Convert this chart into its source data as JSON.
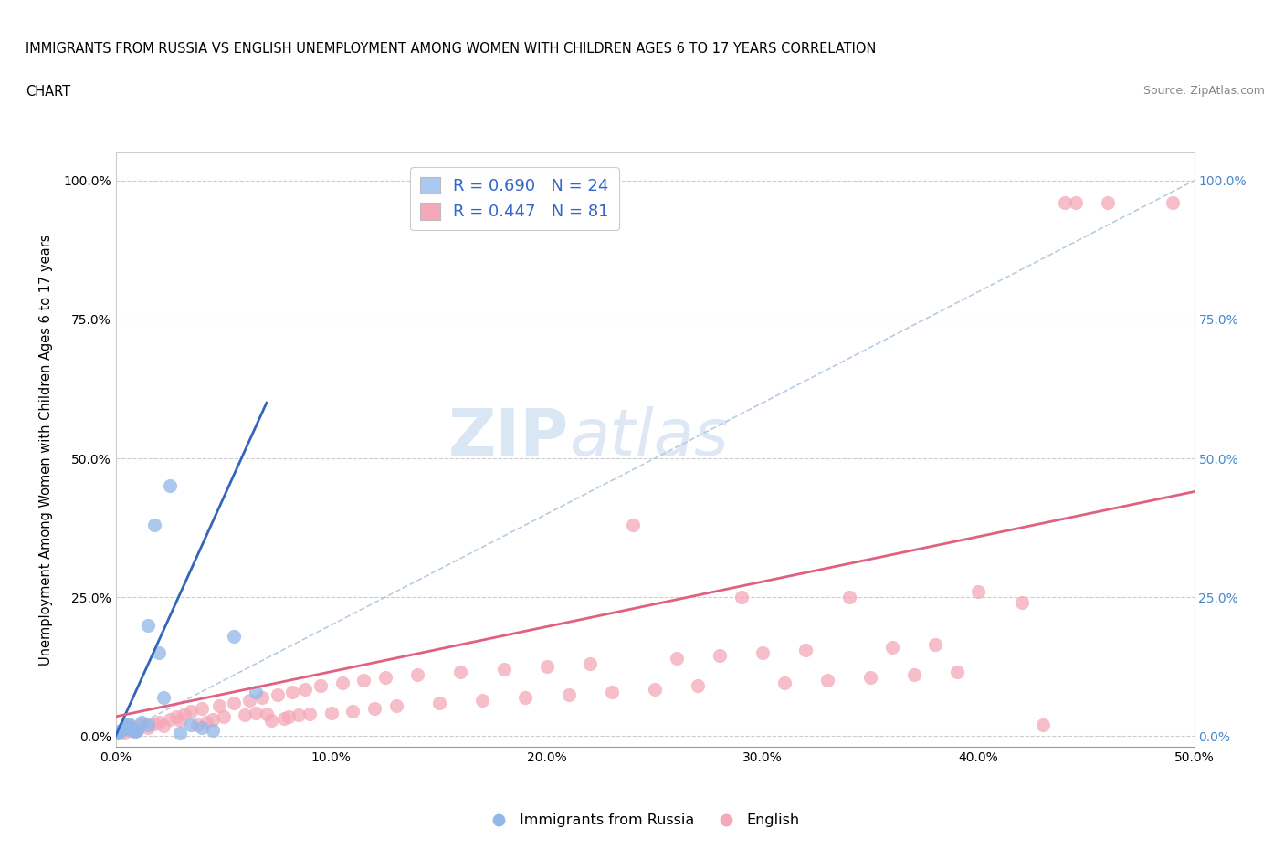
{
  "title_line1": "IMMIGRANTS FROM RUSSIA VS ENGLISH UNEMPLOYMENT AMONG WOMEN WITH CHILDREN AGES 6 TO 17 YEARS CORRELATION",
  "title_line2": "CHART",
  "source_text": "Source: ZipAtlas.com",
  "ylabel": "Unemployment Among Women with Children Ages 6 to 17 years",
  "xmin": 0.0,
  "xmax": 50.0,
  "ymin": -2.0,
  "ymax": 105.0,
  "xticks": [
    0.0,
    10.0,
    20.0,
    30.0,
    40.0,
    50.0
  ],
  "xtick_labels": [
    "0.0%",
    "10.0%",
    "20.0%",
    "30.0%",
    "40.0%",
    "50.0%"
  ],
  "yticks": [
    0.0,
    25.0,
    50.0,
    75.0,
    100.0
  ],
  "ytick_labels": [
    "0.0%",
    "25.0%",
    "50.0%",
    "75.0%",
    "100.0%"
  ],
  "legend_items": [
    {
      "label": "R = 0.690   N = 24",
      "color": "#aac8f0"
    },
    {
      "label": "R = 0.447   N = 81",
      "color": "#f4a8b8"
    }
  ],
  "legend_labels_bottom": [
    "Immigrants from Russia",
    "English"
  ],
  "russia_color": "#90b8e8",
  "english_color": "#f4a8b8",
  "russia_line_color": "#3366bb",
  "english_line_color": "#e06080",
  "dashed_line_color": "#b8cce0",
  "watermark_zip": "ZIP",
  "watermark_atlas": "atlas",
  "russia_scatter": [
    [
      0.1,
      0.5
    ],
    [
      0.2,
      0.8
    ],
    [
      0.3,
      1.2
    ],
    [
      0.4,
      1.5
    ],
    [
      0.5,
      2.0
    ],
    [
      0.5,
      1.8
    ],
    [
      0.6,
      2.2
    ],
    [
      0.7,
      1.5
    ],
    [
      0.8,
      1.0
    ],
    [
      0.9,
      0.8
    ],
    [
      1.0,
      1.0
    ],
    [
      1.2,
      2.5
    ],
    [
      1.5,
      2.0
    ],
    [
      1.5,
      20.0
    ],
    [
      1.8,
      38.0
    ],
    [
      2.0,
      15.0
    ],
    [
      2.2,
      7.0
    ],
    [
      2.5,
      45.0
    ],
    [
      3.0,
      0.5
    ],
    [
      3.5,
      2.0
    ],
    [
      4.0,
      1.5
    ],
    [
      4.5,
      1.0
    ],
    [
      5.5,
      18.0
    ],
    [
      6.5,
      8.0
    ]
  ],
  "english_scatter": [
    [
      0.1,
      0.5
    ],
    [
      0.2,
      0.8
    ],
    [
      0.3,
      1.0
    ],
    [
      0.4,
      0.5
    ],
    [
      0.5,
      1.2
    ],
    [
      0.6,
      1.5
    ],
    [
      0.7,
      1.8
    ],
    [
      0.8,
      1.0
    ],
    [
      0.9,
      0.8
    ],
    [
      1.0,
      1.2
    ],
    [
      1.2,
      2.0
    ],
    [
      1.5,
      1.5
    ],
    [
      1.8,
      2.2
    ],
    [
      2.0,
      2.5
    ],
    [
      2.2,
      1.8
    ],
    [
      2.5,
      3.0
    ],
    [
      2.8,
      3.5
    ],
    [
      3.0,
      2.8
    ],
    [
      3.2,
      4.0
    ],
    [
      3.5,
      4.5
    ],
    [
      3.8,
      2.0
    ],
    [
      4.0,
      5.0
    ],
    [
      4.2,
      2.5
    ],
    [
      4.5,
      3.0
    ],
    [
      4.8,
      5.5
    ],
    [
      5.0,
      3.5
    ],
    [
      5.5,
      6.0
    ],
    [
      6.0,
      3.8
    ],
    [
      6.2,
      6.5
    ],
    [
      6.5,
      4.2
    ],
    [
      6.8,
      7.0
    ],
    [
      7.0,
      4.0
    ],
    [
      7.2,
      2.8
    ],
    [
      7.5,
      7.5
    ],
    [
      7.8,
      3.2
    ],
    [
      8.0,
      3.5
    ],
    [
      8.2,
      8.0
    ],
    [
      8.5,
      3.8
    ],
    [
      8.8,
      8.5
    ],
    [
      9.0,
      4.0
    ],
    [
      9.5,
      9.0
    ],
    [
      10.0,
      4.2
    ],
    [
      10.5,
      9.5
    ],
    [
      11.0,
      4.5
    ],
    [
      11.5,
      10.0
    ],
    [
      12.0,
      5.0
    ],
    [
      12.5,
      10.5
    ],
    [
      13.0,
      5.5
    ],
    [
      14.0,
      11.0
    ],
    [
      15.0,
      6.0
    ],
    [
      16.0,
      11.5
    ],
    [
      17.0,
      6.5
    ],
    [
      18.0,
      12.0
    ],
    [
      19.0,
      7.0
    ],
    [
      20.0,
      12.5
    ],
    [
      21.0,
      7.5
    ],
    [
      22.0,
      13.0
    ],
    [
      23.0,
      8.0
    ],
    [
      24.0,
      38.0
    ],
    [
      25.0,
      8.5
    ],
    [
      26.0,
      14.0
    ],
    [
      27.0,
      9.0
    ],
    [
      28.0,
      14.5
    ],
    [
      29.0,
      25.0
    ],
    [
      30.0,
      15.0
    ],
    [
      31.0,
      9.5
    ],
    [
      32.0,
      15.5
    ],
    [
      33.0,
      10.0
    ],
    [
      34.0,
      25.0
    ],
    [
      35.0,
      10.5
    ],
    [
      36.0,
      16.0
    ],
    [
      37.0,
      11.0
    ],
    [
      38.0,
      16.5
    ],
    [
      39.0,
      11.5
    ],
    [
      40.0,
      26.0
    ],
    [
      42.0,
      24.0
    ],
    [
      43.0,
      2.0
    ],
    [
      44.0,
      96.0
    ],
    [
      44.5,
      96.0
    ],
    [
      46.0,
      96.0
    ],
    [
      49.0,
      96.0
    ]
  ],
  "russia_line_x": [
    0.0,
    7.0
  ],
  "russia_line_y": [
    0.0,
    60.0
  ],
  "english_line_x": [
    0.0,
    50.0
  ],
  "english_line_y": [
    3.5,
    44.0
  ],
  "diag_line_x": [
    0.0,
    50.0
  ],
  "diag_line_y": [
    0.0,
    100.0
  ]
}
